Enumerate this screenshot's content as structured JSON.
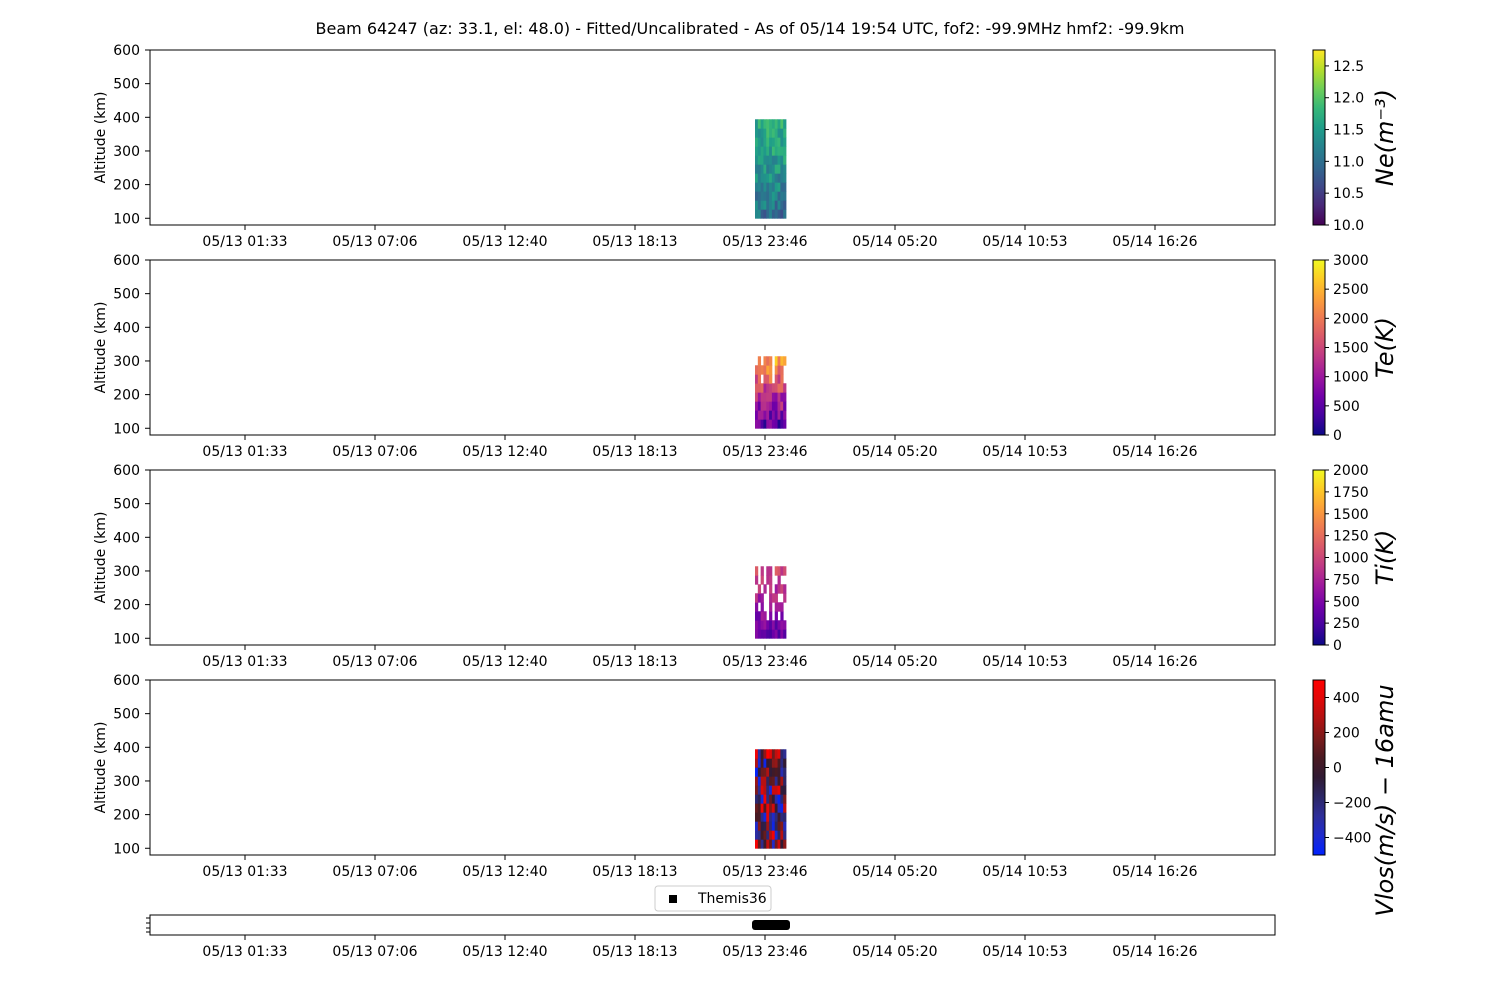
{
  "title": "Beam 64247 (az: 33.1, el: 48.0) - Fitted/Uncalibrated - As of 05/14 19:54 UTC, fof2: -99.9MHz  hmf2: -99.9km",
  "chart_data": [
    {
      "type": "heatmap",
      "ylabel": "Altitude (km)",
      "ylim": [
        80,
        600
      ],
      "yticks": [
        100,
        200,
        300,
        400,
        500,
        600
      ],
      "xtick_labels": [
        "05/13 01:33",
        "05/13 07:06",
        "05/13 12:40",
        "05/13 18:13",
        "05/13 23:46",
        "05/14 05:20",
        "05/14 10:53",
        "05/14 16:26"
      ],
      "colorbar": {
        "label": "Ne(m⁻³)",
        "range": [
          10.0,
          12.75
        ],
        "ticks": [
          "10.0",
          "10.5",
          "11.0",
          "11.5",
          "12.0",
          "12.5"
        ],
        "colormap": "viridis"
      },
      "data_region": {
        "x_start": "05/13 23:00",
        "x_end": "05/14 00:20",
        "altitude_range": [
          100,
          378
        ]
      }
    },
    {
      "type": "heatmap",
      "ylabel": "Altitude (km)",
      "ylim": [
        80,
        600
      ],
      "yticks": [
        100,
        200,
        300,
        400,
        500,
        600
      ],
      "xtick_labels": [
        "05/13 01:33",
        "05/13 07:06",
        "05/13 12:40",
        "05/13 18:13",
        "05/13 23:46",
        "05/14 05:20",
        "05/14 10:53",
        "05/14 16:26"
      ],
      "colorbar": {
        "label": "Te(K)",
        "range": [
          0,
          3000
        ],
        "ticks": [
          "0",
          "500",
          "1000",
          "1500",
          "2000",
          "2500",
          "3000"
        ],
        "colormap": "plasma"
      },
      "data_region": {
        "x_start": "05/13 23:00",
        "x_end": "05/14 00:20",
        "altitude_range": [
          100,
          290
        ]
      }
    },
    {
      "type": "heatmap",
      "ylabel": "Altitude (km)",
      "ylim": [
        80,
        600
      ],
      "yticks": [
        100,
        200,
        300,
        400,
        500,
        600
      ],
      "xtick_labels": [
        "05/13 01:33",
        "05/13 07:06",
        "05/13 12:40",
        "05/13 18:13",
        "05/13 23:46",
        "05/14 05:20",
        "05/14 10:53",
        "05/14 16:26"
      ],
      "colorbar": {
        "label": "Ti(K)",
        "range": [
          0,
          2000
        ],
        "ticks": [
          "0",
          "250",
          "500",
          "750",
          "1000",
          "1250",
          "1500",
          "1750",
          "2000"
        ],
        "colormap": "plasma"
      },
      "data_region": {
        "x_start": "05/13 23:00",
        "x_end": "05/14 00:20",
        "altitude_range": [
          100,
          290
        ]
      }
    },
    {
      "type": "heatmap",
      "ylabel": "Altitude (km)",
      "ylim": [
        80,
        600
      ],
      "yticks": [
        100,
        200,
        300,
        400,
        500,
        600
      ],
      "xtick_labels": [
        "05/13 01:33",
        "05/13 07:06",
        "05/13 12:40",
        "05/13 18:13",
        "05/13 23:46",
        "05/14 05:20",
        "05/14 10:53",
        "05/14 16:26"
      ],
      "colorbar": {
        "label": "Vlos(m/s) − 16amu",
        "range": [
          -500,
          500
        ],
        "ticks": [
          "−400",
          "−200",
          "0",
          "200",
          "400"
        ],
        "colormap": "seismic-dark"
      },
      "data_region": {
        "x_start": "05/13 23:00",
        "x_end": "05/14 00:20",
        "altitude_range": [
          100,
          378
        ]
      }
    },
    {
      "type": "scatter",
      "legend": {
        "label": "Themis36",
        "placement": "top-center"
      },
      "xtick_labels": [
        "05/13 01:33",
        "05/13 07:06",
        "05/13 12:40",
        "05/13 18:13",
        "05/13 23:46",
        "05/14 05:20",
        "05/14 10:53",
        "05/14 16:26"
      ],
      "mode_bar": {
        "x_start": "05/13 23:00",
        "x_end": "05/14 00:20"
      }
    }
  ]
}
